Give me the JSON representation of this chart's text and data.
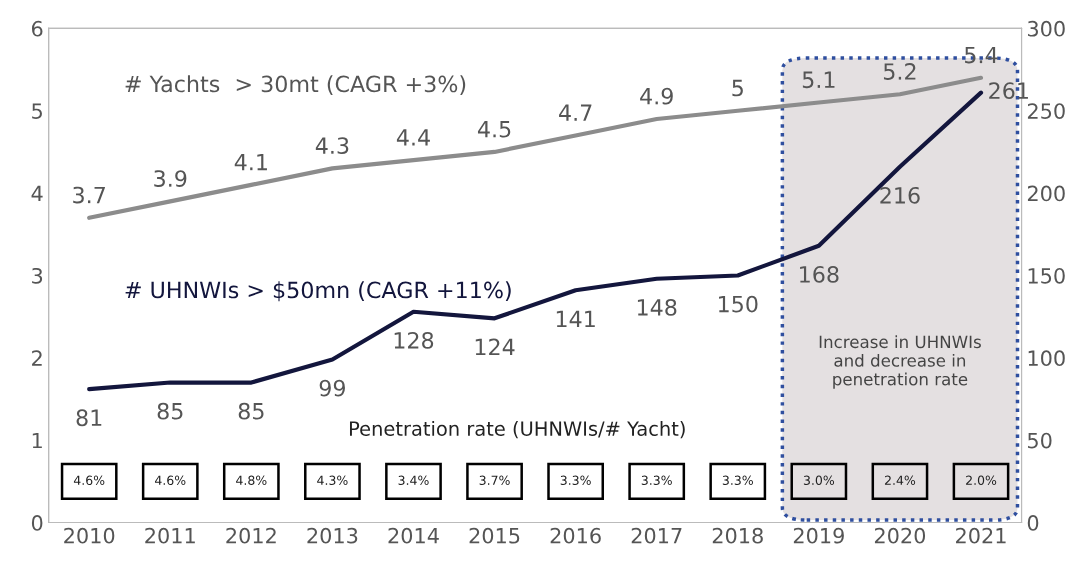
{
  "chart_data": {
    "type": "line",
    "categories": [
      "2010",
      "2011",
      "2012",
      "2013",
      "2014",
      "2015",
      "2016",
      "2017",
      "2018",
      "2019",
      "2020",
      "2021"
    ],
    "series": [
      {
        "name": "# Yachts  > 30mt (CAGR +3%)",
        "color": "#8c8c8c",
        "values": [
          3.7,
          3.9,
          4.1,
          4.3,
          4.4,
          4.5,
          4.7,
          4.9,
          5,
          5.1,
          5.2,
          5.4
        ]
      },
      {
        "name": "# UHNWIs > $50mn (CAGR +11%)",
        "color": "#13163d",
        "axis": "y2",
        "values": [
          81,
          85,
          85,
          99,
          128,
          124,
          141,
          148,
          150,
          168,
          216,
          261
        ]
      }
    ],
    "ylim": [
      0,
      6
    ],
    "yticks": [
      0,
      1,
      2,
      3,
      4,
      5,
      6
    ],
    "y2lim": [
      0,
      300
    ],
    "y2ticks": [
      0,
      50,
      100,
      150,
      200,
      250,
      300
    ],
    "data_labels": true,
    "legend": false,
    "grid": false,
    "marker": "none",
    "line_style": "solid",
    "bands": [
      {
        "axis": "x",
        "from": "2019",
        "to": "2021",
        "label": "Increase in UHNWIs\nand decrease in\npenetration rate",
        "color": "#e4e0e1"
      }
    ],
    "annotations": [
      "Penetration rate (UHNWIs/# Yacht)",
      "4.6%",
      "4.6%",
      "4.8%",
      "4.3%",
      "3.4%",
      "3.7%",
      "3.3%",
      "3.3%",
      "3.3%",
      "3.0%",
      "2.4%",
      "2.0%"
    ]
  }
}
